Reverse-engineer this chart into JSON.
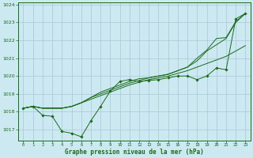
{
  "background_color": "#cce8f0",
  "grid_color": "#a8c8d8",
  "line_color": "#1a6b1a",
  "marker_color": "#1a6b1a",
  "title": "Graphe pression niveau de la mer (hPa)",
  "title_color": "#1a6b1a",
  "xlim": [
    -0.5,
    23.5
  ],
  "ylim": [
    1016.4,
    1024.1
  ],
  "yticks": [
    1017,
    1018,
    1019,
    1020,
    1021,
    1022,
    1023,
    1024
  ],
  "xticks": [
    0,
    1,
    2,
    3,
    4,
    5,
    6,
    7,
    8,
    9,
    10,
    11,
    12,
    13,
    14,
    15,
    16,
    17,
    18,
    19,
    20,
    21,
    22,
    23
  ],
  "series_with_markers": [
    [
      1018.2,
      1018.3,
      1017.8,
      1017.75,
      1016.9,
      1016.8,
      1016.6,
      1017.5,
      1018.3,
      1019.15,
      1019.7,
      1019.8,
      1019.7,
      1019.75,
      1019.8,
      1019.9,
      1020.0,
      1020.0,
      1019.8,
      1020.0,
      1020.45,
      1020.35,
      1023.2,
      1023.5
    ]
  ],
  "series_no_markers": [
    [
      1018.2,
      1018.3,
      1018.2,
      1018.2,
      1018.2,
      1018.3,
      1018.5,
      1018.7,
      1018.9,
      1019.1,
      1019.3,
      1019.5,
      1019.65,
      1019.8,
      1019.9,
      1020.0,
      1020.15,
      1020.3,
      1020.5,
      1020.7,
      1020.9,
      1021.1,
      1021.4,
      1021.7
    ],
    [
      1018.2,
      1018.3,
      1018.2,
      1018.2,
      1018.2,
      1018.3,
      1018.5,
      1018.8,
      1019.0,
      1019.2,
      1019.4,
      1019.6,
      1019.75,
      1019.9,
      1020.0,
      1020.1,
      1020.3,
      1020.5,
      1020.85,
      1021.4,
      1021.75,
      1022.1,
      1023.0,
      1023.5
    ],
    [
      1018.2,
      1018.3,
      1018.2,
      1018.2,
      1018.2,
      1018.3,
      1018.5,
      1018.8,
      1019.1,
      1019.3,
      1019.5,
      1019.7,
      1019.85,
      1019.9,
      1020.0,
      1020.1,
      1020.3,
      1020.5,
      1021.0,
      1021.45,
      1022.1,
      1022.15,
      1023.05,
      1023.5
    ]
  ]
}
